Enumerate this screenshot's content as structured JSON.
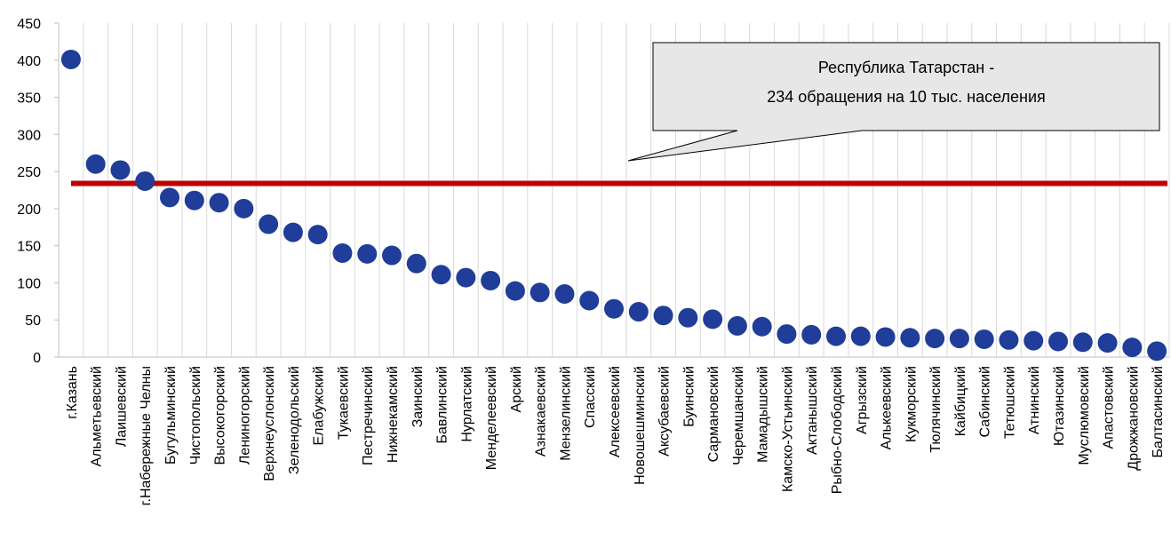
{
  "chart_data": {
    "type": "scatter",
    "categories": [
      "г.Казань",
      "Альметьевский",
      "Лаишевский",
      "г.Набережные Челны",
      "Бугульминский",
      "Чистопольский",
      "Высокогорский",
      "Лениногорский",
      "Верхнеуслонский",
      "Зеленодольский",
      "Елабужский",
      "Тукаевский",
      "Пестречинский",
      "Нижнекамский",
      "Заинский",
      "Бавлинский",
      "Нурлатский",
      "Менделеевский",
      "Арский",
      "Азнакаевский",
      "Мензелинский",
      "Спасский",
      "Алексеевский",
      "Новошешминский",
      "Аксубаевский",
      "Буинский",
      "Сармановский",
      "Черемшанский",
      "Мамадышский",
      "Камско-Устьинский",
      "Актанышский",
      "Рыбно-Слободский",
      "Агрызский",
      "Алькеевский",
      "Кукморский",
      "Тюлячинский",
      "Кайбицкий",
      "Сабинский",
      "Тетюшский",
      "Атнинский",
      "Ютазинский",
      "Муслюмовский",
      "Апастовский",
      "Дрожжановский",
      "Балтасинский"
    ],
    "values": [
      401,
      260,
      252,
      237,
      215,
      211,
      208,
      200,
      179,
      168,
      165,
      140,
      139,
      137,
      126,
      111,
      107,
      103,
      89,
      87,
      85,
      76,
      65,
      61,
      56,
      53,
      51,
      42,
      41,
      31,
      30,
      28,
      28,
      27,
      26,
      25,
      25,
      24,
      23,
      22,
      21,
      20,
      19,
      13,
      8
    ],
    "reference_line": 234,
    "ylim": [
      0,
      450
    ],
    "y_ticks": [
      "0",
      "50",
      "100",
      "150",
      "200",
      "250",
      "300",
      "350",
      "400",
      "450"
    ],
    "grid": "vertical",
    "marker_color": "#1f3d99",
    "line_color": "#c00000",
    "annotation": {
      "line1": "Республика Татарстан -",
      "line2": "234 обращения на 10 тыс. населения"
    }
  }
}
